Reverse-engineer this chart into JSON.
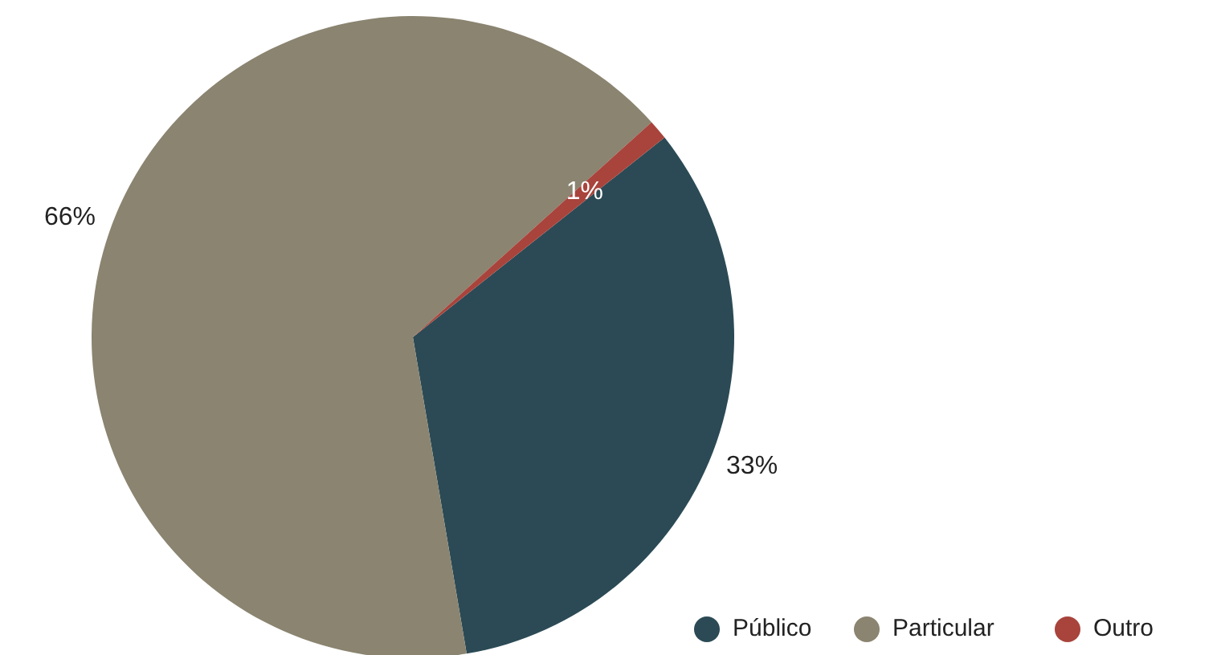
{
  "chart_data": {
    "type": "pie",
    "categories": [
      "Público",
      "Particular",
      "Outro"
    ],
    "values": [
      33,
      66,
      1
    ],
    "colors": [
      "#2b4a55",
      "#8a8470",
      "#a8443c"
    ],
    "value_labels": [
      "33%",
      "66%",
      "1%"
    ],
    "legend": "bottom right"
  }
}
